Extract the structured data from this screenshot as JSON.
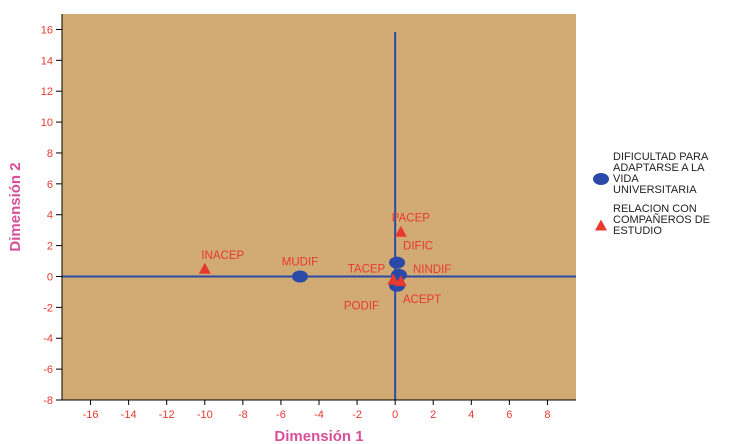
{
  "chart_data": {
    "type": "scatter",
    "xlabel": "Dimensión 1",
    "ylabel": "Dimensión 2",
    "xlim": [
      -17.5,
      9.5
    ],
    "ylim": [
      -8,
      17
    ],
    "xticks": [
      -16,
      -14,
      -12,
      -10,
      -8,
      -6,
      -4,
      -2,
      0,
      2,
      4,
      6,
      8
    ],
    "yticks": [
      -8,
      -6,
      -4,
      -2,
      0,
      2,
      4,
      6,
      8,
      10,
      12,
      14,
      16
    ],
    "plot_bg": "#d2aa73",
    "axis_line_color": "#2b4aa8",
    "series": [
      {
        "name": "DIFICULTAD PARA ADAPTARSE A LA VIDA UNIVERSITARIA",
        "legend_lines": [
          "DIFICULTAD PARA",
          "ADAPTARSE A LA",
          "VIDA",
          "UNIVERSITARIA"
        ],
        "marker": "circle",
        "color": "#2b4aa8",
        "points": [
          {
            "label": "MUDIF",
            "x": -5.0,
            "y": 0.0
          },
          {
            "label": "DIFIC",
            "x": 0.1,
            "y": 0.9
          },
          {
            "label": "NINDIF",
            "x": 0.2,
            "y": 0.1
          },
          {
            "label": "PODIF",
            "x": 0.1,
            "y": -0.6
          }
        ]
      },
      {
        "name": "RELACION CON COMPAÑEROS DE ESTUDIO",
        "legend_lines": [
          "RELACION CON",
          "COMPAÑEROS DE",
          "ESTUDIO"
        ],
        "marker": "triangle",
        "color": "#e8392f",
        "points": [
          {
            "label": "INACEP",
            "x": -10.0,
            "y": 0.5
          },
          {
            "label": "PACEP",
            "x": 0.3,
            "y": 2.9
          },
          {
            "label": "TACEP",
            "x": -0.1,
            "y": -0.2
          },
          {
            "label": "ACEPT",
            "x": 0.3,
            "y": -0.3
          }
        ]
      }
    ]
  }
}
